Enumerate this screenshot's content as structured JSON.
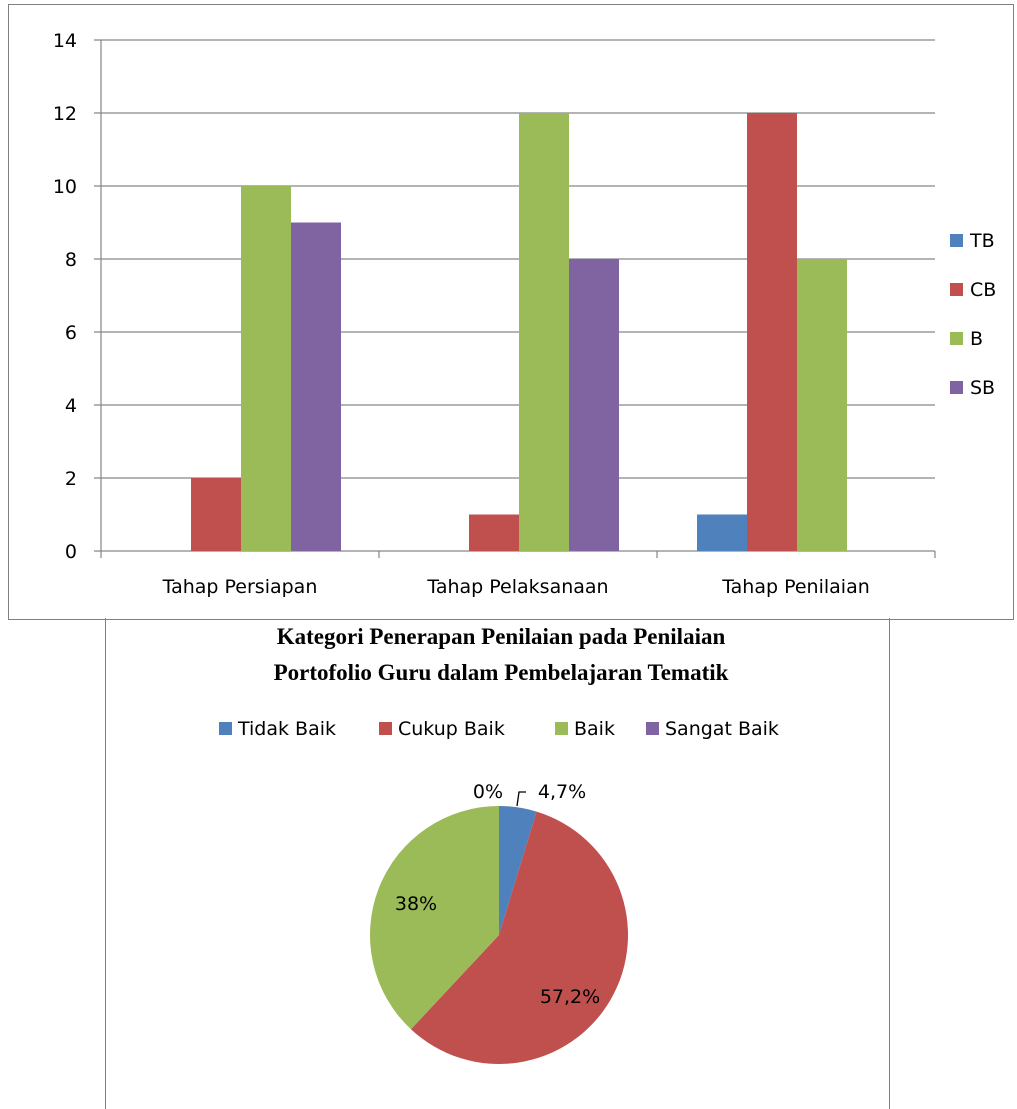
{
  "chart_data": [
    {
      "type": "bar",
      "categories": [
        "Tahap Persiapan",
        "Tahap Pelaksanaan",
        "Tahap Penilaian"
      ],
      "series": [
        {
          "name": "TB",
          "color": "#4F81BD",
          "values": [
            0,
            0,
            1
          ]
        },
        {
          "name": "CB",
          "color": "#C0504D",
          "values": [
            2,
            1,
            12
          ]
        },
        {
          "name": "B",
          "color": "#9BBB59",
          "values": [
            10,
            12,
            8
          ]
        },
        {
          "name": "SB",
          "color": "#8064A2",
          "values": [
            9,
            8,
            0
          ]
        }
      ],
      "ylim": [
        0,
        14
      ],
      "yticks": [
        "0",
        "2",
        "4",
        "6",
        "8",
        "10",
        "12",
        "14"
      ],
      "grid": true,
      "legend": "right"
    },
    {
      "type": "pie",
      "title_lines": [
        "Kategori Penerapan Penilaian pada Penilaian",
        "Portofolio Guru dalam Pembelajaran Tematik"
      ],
      "legend": "top",
      "slices": [
        {
          "name": "Tidak Baik",
          "color": "#4F81BD",
          "value": 4.7,
          "label": "4,7%"
        },
        {
          "name": "Cukup Baik",
          "color": "#C0504D",
          "value": 57.2,
          "label": "57,2%"
        },
        {
          "name": "Baik",
          "color": "#9BBB59",
          "value": 38,
          "label": "38%"
        },
        {
          "name": "Sangat Baik",
          "color": "#8064A2",
          "value": 0,
          "label": "0%"
        }
      ]
    }
  ]
}
